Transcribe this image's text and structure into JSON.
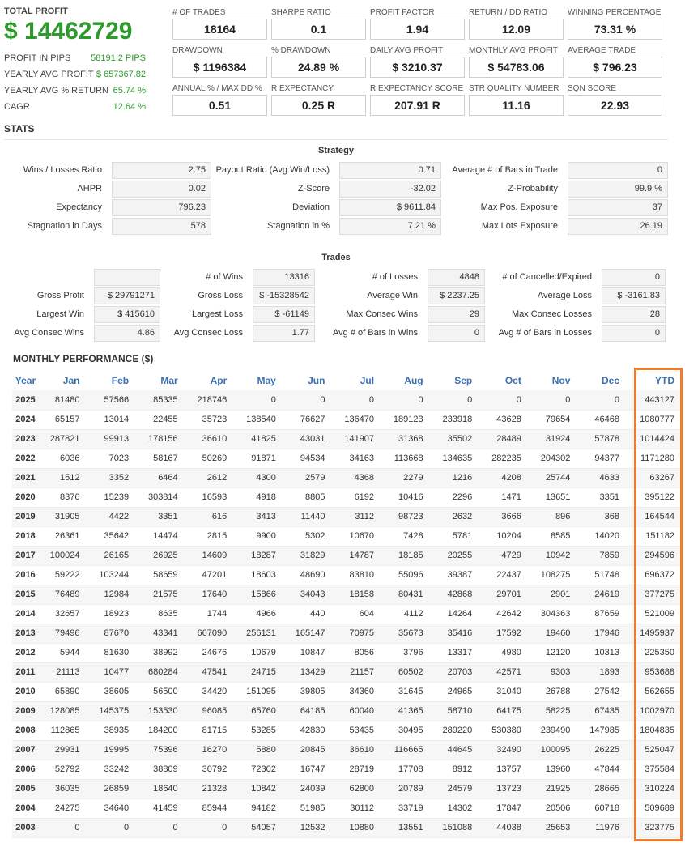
{
  "summary": {
    "total_profit_label": "TOTAL PROFIT",
    "total_profit_value": "$ 14462729",
    "rows": [
      {
        "label": "PROFIT IN PIPS",
        "value": "58191.2 PIPS"
      },
      {
        "label": "YEARLY AVG PROFIT",
        "value": "$ 657367.82"
      },
      {
        "label": "YEARLY AVG % RETURN",
        "value": "65.74 %"
      },
      {
        "label": "CAGR",
        "value": "12.64 %"
      }
    ]
  },
  "metrics": [
    {
      "label": "# OF TRADES",
      "value": "18164"
    },
    {
      "label": "SHARPE RATIO",
      "value": "0.1"
    },
    {
      "label": "PROFIT FACTOR",
      "value": "1.94"
    },
    {
      "label": "RETURN / DD RATIO",
      "value": "12.09"
    },
    {
      "label": "WINNING PERCENTAGE",
      "value": "73.31 %"
    },
    {
      "label": "DRAWDOWN",
      "value": "$ 1196384"
    },
    {
      "label": "% DRAWDOWN",
      "value": "24.89 %"
    },
    {
      "label": "DAILY AVG PROFIT",
      "value": "$ 3210.37"
    },
    {
      "label": "MONTHLY AVG PROFIT",
      "value": "$ 54783.06"
    },
    {
      "label": "AVERAGE TRADE",
      "value": "$ 796.23"
    },
    {
      "label": "ANNUAL % / MAX DD %",
      "value": "0.51"
    },
    {
      "label": "R EXPECTANCY",
      "value": "0.25 R"
    },
    {
      "label": "R EXPECTANCY SCORE",
      "value": "207.91 R"
    },
    {
      "label": "STR QUALITY NUMBER",
      "value": "11.16"
    },
    {
      "label": "SQN SCORE",
      "value": "22.93"
    }
  ],
  "stats_title": "STATS",
  "strategy": {
    "title": "Strategy",
    "rows": [
      [
        {
          "label": "Wins / Losses Ratio",
          "value": "2.75"
        },
        {
          "label": "Payout Ratio (Avg Win/Loss)",
          "value": "0.71"
        },
        {
          "label": "Average # of Bars in Trade",
          "value": "0"
        }
      ],
      [
        {
          "label": "AHPR",
          "value": "0.02"
        },
        {
          "label": "Z-Score",
          "value": "-32.02"
        },
        {
          "label": "Z-Probability",
          "value": "99.9 %"
        }
      ],
      [
        {
          "label": "Expectancy",
          "value": "796.23"
        },
        {
          "label": "Deviation",
          "value": "$ 9611.84"
        },
        {
          "label": "Max Pos. Exposure",
          "value": "37"
        }
      ],
      [
        {
          "label": "Stagnation in Days",
          "value": "578"
        },
        {
          "label": "Stagnation in %",
          "value": "7.21 %"
        },
        {
          "label": "Max Lots Exposure",
          "value": "26.19"
        }
      ]
    ]
  },
  "trades": {
    "title": "Trades",
    "rows": [
      [
        {
          "label": "",
          "value": ""
        },
        {
          "label": "# of Wins",
          "value": "13316"
        },
        {
          "label": "# of Losses",
          "value": "4848"
        },
        {
          "label": "# of Cancelled/Expired",
          "value": "0"
        }
      ],
      [
        {
          "label": "Gross Profit",
          "value": "$ 29791271"
        },
        {
          "label": "Gross Loss",
          "value": "$ -15328542"
        },
        {
          "label": "Average Win",
          "value": "$ 2237.25"
        },
        {
          "label": "Average Loss",
          "value": "$ -3161.83"
        }
      ],
      [
        {
          "label": "Largest Win",
          "value": "$ 415610"
        },
        {
          "label": "Largest Loss",
          "value": "$ -61149"
        },
        {
          "label": "Max Consec Wins",
          "value": "29"
        },
        {
          "label": "Max Consec Losses",
          "value": "28"
        }
      ],
      [
        {
          "label": "Avg Consec Wins",
          "value": "4.86"
        },
        {
          "label": "Avg Consec Loss",
          "value": "1.77"
        },
        {
          "label": "Avg # of Bars in Wins",
          "value": "0"
        },
        {
          "label": "Avg # of Bars in Losses",
          "value": "0"
        }
      ]
    ]
  },
  "monthly": {
    "title": "MONTHLY PERFORMANCE ($)",
    "headers": [
      "Year",
      "Jan",
      "Feb",
      "Mar",
      "Apr",
      "May",
      "Jun",
      "Jul",
      "Aug",
      "Sep",
      "Oct",
      "Nov",
      "Dec",
      "YTD"
    ],
    "rows": [
      [
        "2025",
        "81480",
        "57566",
        "85335",
        "218746",
        "0",
        "0",
        "0",
        "0",
        "0",
        "0",
        "0",
        "0",
        "443127"
      ],
      [
        "2024",
        "65157",
        "13014",
        "22455",
        "35723",
        "138540",
        "76627",
        "136470",
        "189123",
        "233918",
        "43628",
        "79654",
        "46468",
        "1080777"
      ],
      [
        "2023",
        "287821",
        "99913",
        "178156",
        "36610",
        "41825",
        "43031",
        "141907",
        "31368",
        "35502",
        "28489",
        "31924",
        "57878",
        "1014424"
      ],
      [
        "2022",
        "6036",
        "7023",
        "58167",
        "50269",
        "91871",
        "94534",
        "34163",
        "113668",
        "134635",
        "282235",
        "204302",
        "94377",
        "1171280"
      ],
      [
        "2021",
        "1512",
        "3352",
        "6464",
        "2612",
        "4300",
        "2579",
        "4368",
        "2279",
        "1216",
        "4208",
        "25744",
        "4633",
        "63267"
      ],
      [
        "2020",
        "8376",
        "15239",
        "303814",
        "16593",
        "4918",
        "8805",
        "6192",
        "10416",
        "2296",
        "1471",
        "13651",
        "3351",
        "395122"
      ],
      [
        "2019",
        "31905",
        "4422",
        "3351",
        "616",
        "3413",
        "11440",
        "3112",
        "98723",
        "2632",
        "3666",
        "896",
        "368",
        "164544"
      ],
      [
        "2018",
        "26361",
        "35642",
        "14474",
        "2815",
        "9900",
        "5302",
        "10670",
        "7428",
        "5781",
        "10204",
        "8585",
        "14020",
        "151182"
      ],
      [
        "2017",
        "100024",
        "26165",
        "26925",
        "14609",
        "18287",
        "31829",
        "14787",
        "18185",
        "20255",
        "4729",
        "10942",
        "7859",
        "294596"
      ],
      [
        "2016",
        "59222",
        "103244",
        "58659",
        "47201",
        "18603",
        "48690",
        "83810",
        "55096",
        "39387",
        "22437",
        "108275",
        "51748",
        "696372"
      ],
      [
        "2015",
        "76489",
        "12984",
        "21575",
        "17640",
        "15866",
        "34043",
        "18158",
        "80431",
        "42868",
        "29701",
        "2901",
        "24619",
        "377275"
      ],
      [
        "2014",
        "32657",
        "18923",
        "8635",
        "1744",
        "4966",
        "440",
        "604",
        "4112",
        "14264",
        "42642",
        "304363",
        "87659",
        "521009"
      ],
      [
        "2013",
        "79496",
        "87670",
        "43341",
        "667090",
        "256131",
        "165147",
        "70975",
        "35673",
        "35416",
        "17592",
        "19460",
        "17946",
        "1495937"
      ],
      [
        "2012",
        "5944",
        "81630",
        "38992",
        "24676",
        "10679",
        "10847",
        "8056",
        "3796",
        "13317",
        "4980",
        "12120",
        "10313",
        "225350"
      ],
      [
        "2011",
        "21113",
        "10477",
        "680284",
        "47541",
        "24715",
        "13429",
        "21157",
        "60502",
        "20703",
        "42571",
        "9303",
        "1893",
        "953688"
      ],
      [
        "2010",
        "65890",
        "38605",
        "56500",
        "34420",
        "151095",
        "39805",
        "34360",
        "31645",
        "24965",
        "31040",
        "26788",
        "27542",
        "562655"
      ],
      [
        "2009",
        "128085",
        "145375",
        "153530",
        "96085",
        "65760",
        "64185",
        "60040",
        "41365",
        "58710",
        "64175",
        "58225",
        "67435",
        "1002970"
      ],
      [
        "2008",
        "112865",
        "38935",
        "184200",
        "81715",
        "53285",
        "42830",
        "53435",
        "30495",
        "289220",
        "530380",
        "239490",
        "147985",
        "1804835"
      ],
      [
        "2007",
        "29931",
        "19995",
        "75396",
        "16270",
        "5880",
        "20845",
        "36610",
        "116665",
        "44645",
        "32490",
        "100095",
        "26225",
        "525047"
      ],
      [
        "2006",
        "52792",
        "33242",
        "38809",
        "30792",
        "72302",
        "16747",
        "28719",
        "17708",
        "8912",
        "13757",
        "13960",
        "47844",
        "375584"
      ],
      [
        "2005",
        "36035",
        "26859",
        "18640",
        "21328",
        "10842",
        "24039",
        "62800",
        "20789",
        "24579",
        "13723",
        "21925",
        "28665",
        "310224"
      ],
      [
        "2004",
        "24275",
        "34640",
        "41459",
        "85944",
        "94182",
        "51985",
        "30112",
        "33719",
        "14302",
        "17847",
        "20506",
        "60718",
        "509689"
      ],
      [
        "2003",
        "0",
        "0",
        "0",
        "0",
        "54057",
        "12532",
        "10880",
        "13551",
        "151088",
        "44038",
        "25653",
        "11976",
        "323775"
      ]
    ]
  },
  "colors": {
    "profit_green": "#2e9a2e",
    "header_blue": "#3a6fb0",
    "highlight_orange": "#f07b2a"
  }
}
